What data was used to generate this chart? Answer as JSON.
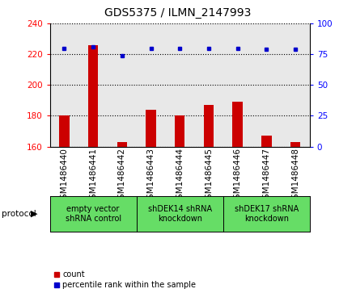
{
  "title": "GDS5375 / ILMN_2147993",
  "samples": [
    "GSM1486440",
    "GSM1486441",
    "GSM1486442",
    "GSM1486443",
    "GSM1486444",
    "GSM1486445",
    "GSM1486446",
    "GSM1486447",
    "GSM1486448"
  ],
  "counts": [
    180,
    226,
    163,
    184,
    180,
    187,
    189,
    167,
    163
  ],
  "percentiles": [
    80,
    81,
    74,
    80,
    80,
    80,
    80,
    79,
    79
  ],
  "ylim_left": [
    160,
    240
  ],
  "ylim_right": [
    0,
    100
  ],
  "yticks_left": [
    160,
    180,
    200,
    220,
    240
  ],
  "yticks_right": [
    0,
    25,
    50,
    75,
    100
  ],
  "bar_color": "#cc0000",
  "dot_color": "#0000cc",
  "bg_color": "#e8e8e8",
  "group_color": "#66dd66",
  "groups": [
    {
      "label": "empty vector\nshRNA control",
      "start": 0,
      "end": 3
    },
    {
      "label": "shDEK14 shRNA\nknockdown",
      "start": 3,
      "end": 6
    },
    {
      "label": "shDEK17 shRNA\nknockdown",
      "start": 6,
      "end": 9
    }
  ],
  "protocol_label": "protocol",
  "legend_count_label": "count",
  "legend_pct_label": "percentile rank within the sample",
  "title_fontsize": 10,
  "tick_fontsize": 7.5,
  "group_fontsize": 7,
  "legend_fontsize": 7
}
